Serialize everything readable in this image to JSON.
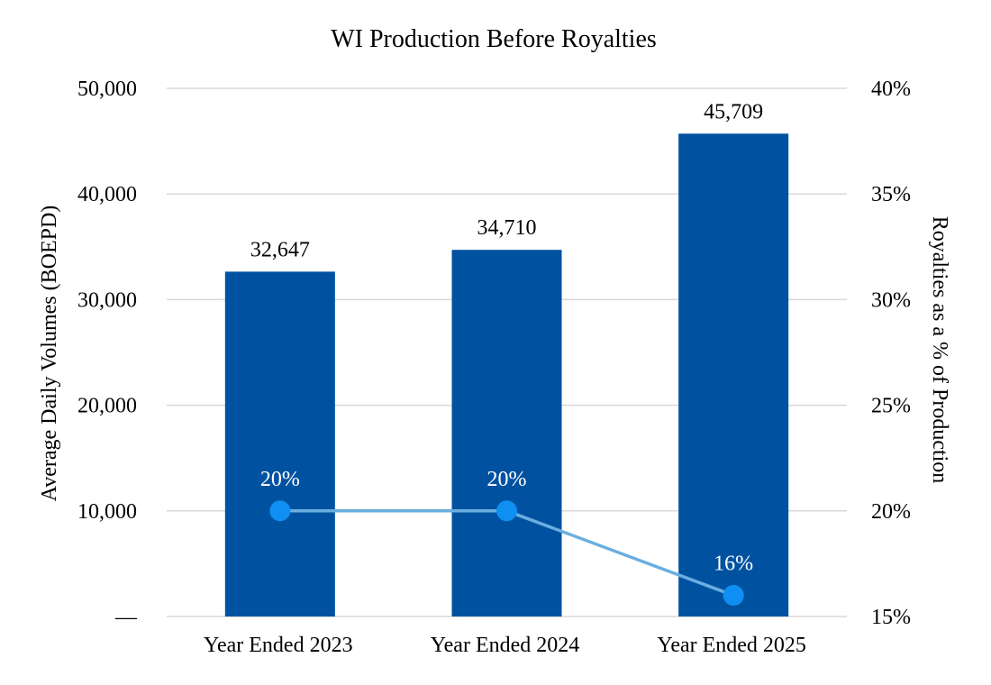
{
  "chart_data": {
    "type": "bar",
    "title": "WI Production Before Royalties",
    "categories": [
      "Year Ended 2023",
      "Year Ended 2024",
      "Year Ended 2025"
    ],
    "series": [
      {
        "type": "bar",
        "axis": "left",
        "values": [
          32647,
          34710,
          45709
        ],
        "labels": [
          "32,647",
          "34,710",
          "45,709"
        ],
        "color": "#0052a0"
      },
      {
        "type": "line",
        "axis": "right",
        "values": [
          20,
          20,
          16
        ],
        "labels": [
          "20%",
          "20%",
          "16%"
        ],
        "line_color": "#6baee0",
        "marker_color": "#0f8ff2"
      }
    ],
    "y_left": {
      "label": "Average Daily Volumes (BOEPD)",
      "min": 0,
      "max": 50000,
      "ticks": [
        0,
        10000,
        20000,
        30000,
        40000,
        50000
      ],
      "tick_labels": [
        "—",
        "10,000",
        "20,000",
        "30,000",
        "40,000",
        "50,000"
      ]
    },
    "y_right": {
      "label": "Royalties as a % of Production",
      "min": 15,
      "max": 40,
      "ticks": [
        15,
        20,
        25,
        30,
        35,
        40
      ],
      "tick_labels": [
        "15%",
        "20%",
        "25%",
        "30%",
        "35%",
        "40%"
      ]
    },
    "grid": true,
    "legend": "none"
  }
}
